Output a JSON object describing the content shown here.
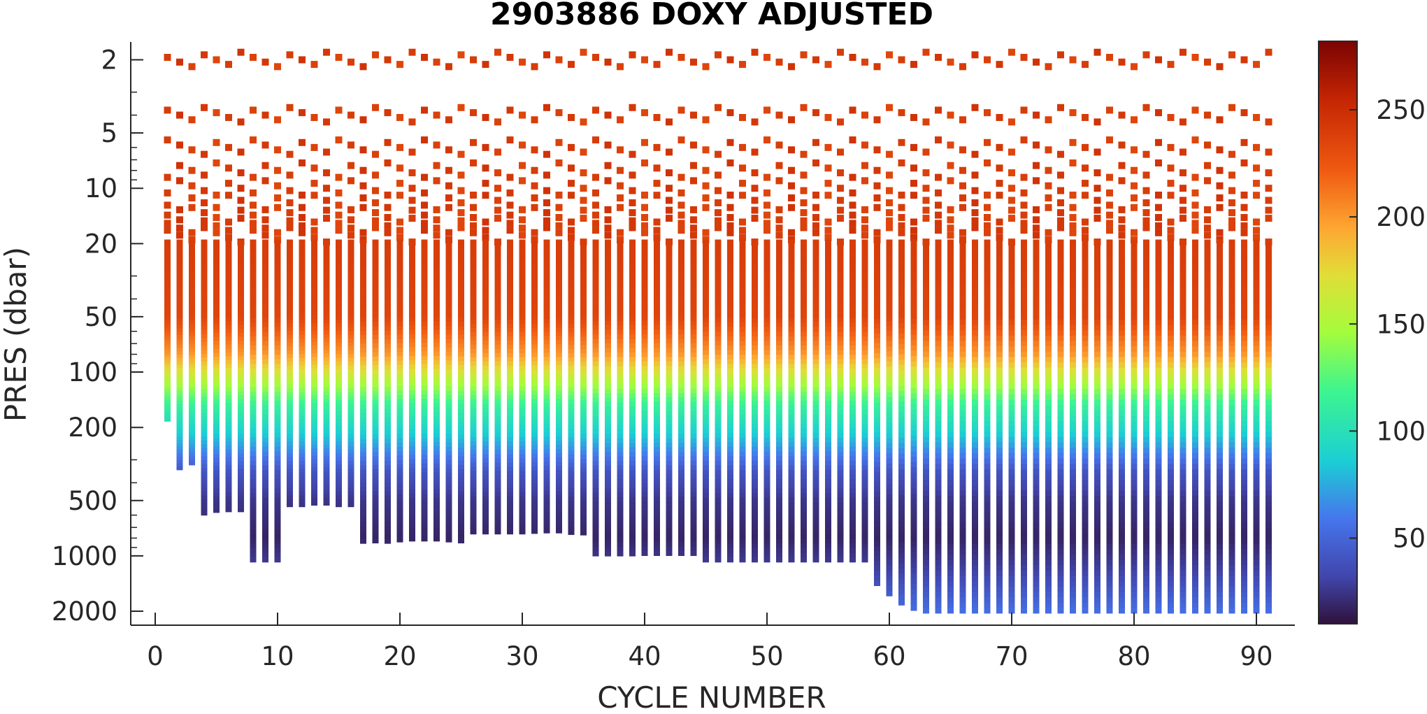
{
  "chart_data": {
    "type": "heatmap",
    "title": "2903886  DOXY ADJUSTED",
    "xlabel": "CYCLE NUMBER",
    "ylabel": "PRES (dbar)",
    "xlim": [
      0,
      93
    ],
    "ylim": [
      1.6,
      2300
    ],
    "y_scale": "log",
    "y_reversed": true,
    "x_ticks": [
      0,
      10,
      20,
      30,
      40,
      50,
      60,
      70,
      80,
      90
    ],
    "y_ticks": [
      2,
      5,
      10,
      20,
      50,
      100,
      200,
      500,
      1000,
      2000
    ],
    "colorbar": {
      "colormap": "turbo",
      "range": [
        10,
        282
      ],
      "ticks": [
        50,
        100,
        150,
        200,
        250
      ]
    },
    "cycles": [
      1,
      2,
      3,
      4,
      5,
      6,
      7,
      8,
      9,
      10,
      11,
      12,
      13,
      14,
      15,
      16,
      17,
      18,
      19,
      20,
      21,
      22,
      23,
      24,
      25,
      26,
      27,
      28,
      29,
      30,
      31,
      32,
      33,
      34,
      35,
      36,
      37,
      38,
      39,
      40,
      41,
      42,
      43,
      44,
      45,
      46,
      47,
      48,
      49,
      50,
      51,
      52,
      53,
      54,
      55,
      56,
      57,
      58,
      59,
      60,
      61,
      62,
      63,
      64,
      65,
      66,
      67,
      68,
      69,
      70,
      71,
      72,
      73,
      74,
      75,
      76,
      77,
      78,
      79,
      80,
      81,
      82,
      83,
      84,
      85,
      86,
      87,
      88,
      89,
      90,
      91
    ],
    "max_pressure": [
      185,
      340,
      320,
      600,
      580,
      575,
      575,
      1080,
      1080,
      1080,
      540,
      540,
      530,
      530,
      540,
      540,
      855,
      850,
      855,
      840,
      830,
      830,
      830,
      840,
      850,
      760,
      760,
      760,
      760,
      760,
      755,
      750,
      750,
      765,
      770,
      1000,
      1000,
      1000,
      1000,
      995,
      995,
      995,
      995,
      995,
      1080,
      1080,
      1080,
      1080,
      1080,
      1080,
      1080,
      1080,
      1080,
      1080,
      1080,
      1080,
      1080,
      1080,
      1450,
      1650,
      1850,
      1980,
      2050,
      2050,
      2050,
      2050,
      2050,
      2050,
      2050,
      2050,
      2050,
      2050,
      2050,
      2050,
      2050,
      2050,
      2050,
      2050,
      2050,
      2050,
      2050,
      2050,
      2050,
      2050,
      2050,
      2050,
      2050,
      2050,
      2050,
      2050,
      2050
    ],
    "discrete_pressure_levels": [
      2,
      4,
      6,
      8,
      10,
      12,
      14,
      16,
      18
    ],
    "profile_shape_pressure": [
      2,
      20,
      50,
      80,
      110,
      150,
      220,
      350,
      500,
      800,
      1200,
      2000
    ],
    "profile_shape_value": [
      240,
      240,
      235,
      200,
      155,
      115,
      85,
      40,
      25,
      18,
      30,
      55
    ]
  }
}
